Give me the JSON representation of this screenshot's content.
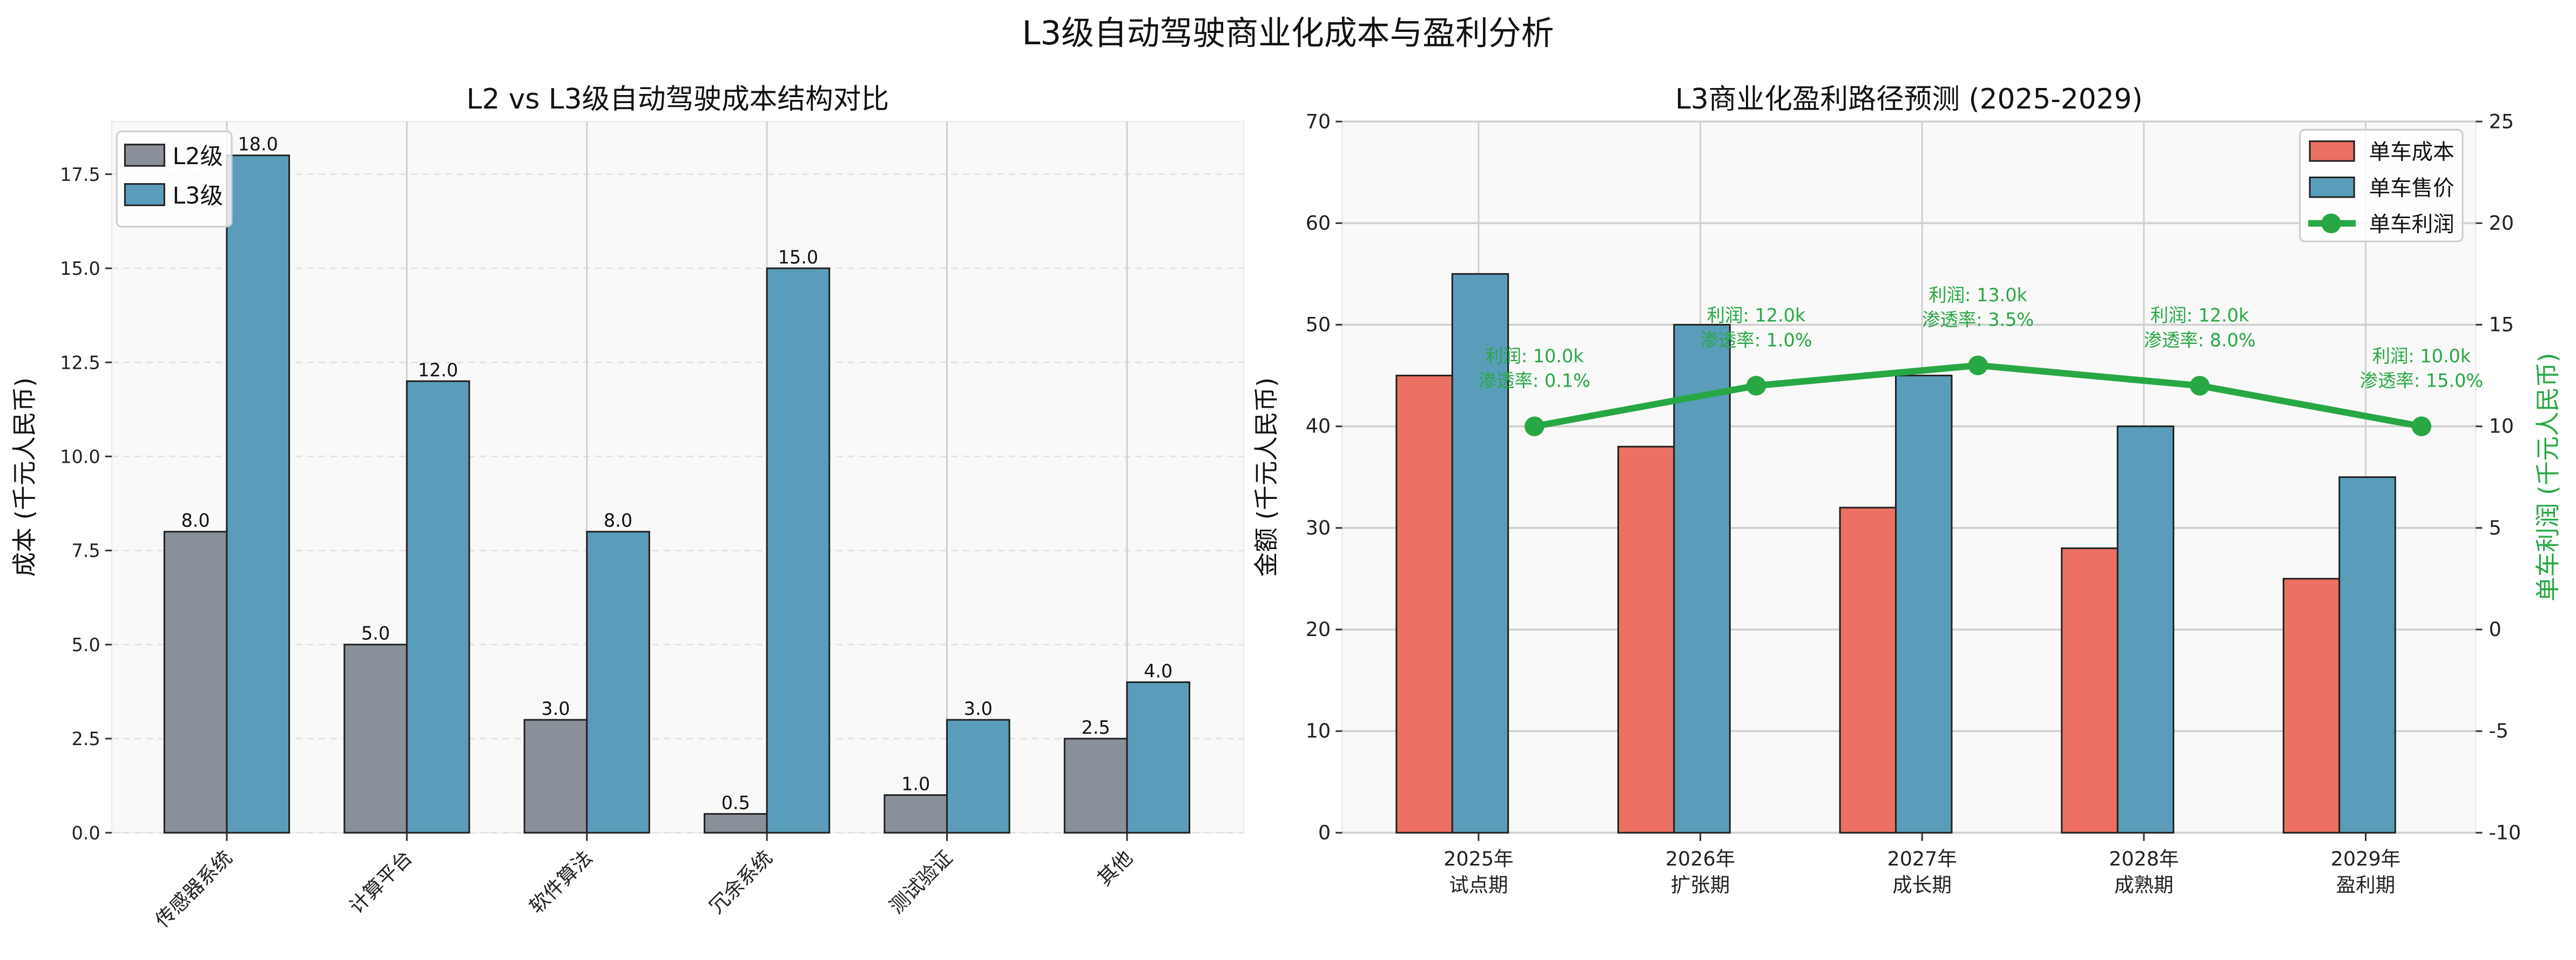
{
  "figure_title": "L3级自动驾驶商业化成本与盈利分析",
  "colors": {
    "l2": "#8a9099",
    "l3": "#5a9dba",
    "cost": "#ec7063",
    "price": "#5a9dba",
    "profit": "#28a745",
    "plot_bg": "#f9f9f9"
  },
  "chart_data": [
    {
      "type": "bar",
      "title": "L2 vs L3级自动驾驶成本结构对比",
      "xlabel": "",
      "ylabel": "成本 (千元人民币)",
      "categories": [
        "传感器系统",
        "计算平台",
        "软件算法",
        "冗余系统",
        "测试验证",
        "其他"
      ],
      "series": [
        {
          "name": "L2级",
          "values": [
            8.0,
            5.0,
            3.0,
            0.5,
            1.0,
            2.5
          ]
        },
        {
          "name": "L3级",
          "values": [
            18.0,
            12.0,
            8.0,
            15.0,
            3.0,
            4.0
          ]
        }
      ],
      "ylim": [
        0,
        18.9
      ],
      "yticks": [
        "0.0",
        "2.5",
        "5.0",
        "7.5",
        "10.0",
        "12.5",
        "15.0",
        "17.5"
      ],
      "grid": true,
      "legend": "top-left"
    },
    {
      "type": "bar+line",
      "title": "L3商业化盈利路径预测 (2025-2029)",
      "ylabel": "金额 (千元人民币)",
      "y2label": "单车利润 (千元人民币)",
      "categories": [
        "2025年\n试点期",
        "2026年\n扩张期",
        "2027年\n成长期",
        "2028年\n成熟期",
        "2029年\n盈利期"
      ],
      "category_lines": [
        [
          "2025年",
          "试点期"
        ],
        [
          "2026年",
          "扩张期"
        ],
        [
          "2027年",
          "成长期"
        ],
        [
          "2028年",
          "成熟期"
        ],
        [
          "2029年",
          "盈利期"
        ]
      ],
      "series": [
        {
          "name": "单车成本",
          "type": "bar",
          "axis": "left",
          "values": [
            45,
            38,
            32,
            28,
            25
          ]
        },
        {
          "name": "单车售价",
          "type": "bar",
          "axis": "left",
          "values": [
            55,
            50,
            45,
            40,
            35
          ]
        },
        {
          "name": "单车利润",
          "type": "line",
          "axis": "right",
          "values": [
            10,
            12,
            13,
            12,
            10
          ]
        }
      ],
      "annotations": [
        [
          "利润: 10.0k",
          "渗透率: 0.1%"
        ],
        [
          "利润: 12.0k",
          "渗透率: 1.0%"
        ],
        [
          "利润: 13.0k",
          "渗透率: 3.5%"
        ],
        [
          "利润: 12.0k",
          "渗透率: 8.0%"
        ],
        [
          "利润: 10.0k",
          "渗透率: 15.0%"
        ]
      ],
      "ylim": [
        0,
        70
      ],
      "y2lim": [
        -10,
        25
      ],
      "yticks": [
        "0",
        "10",
        "20",
        "30",
        "40",
        "50",
        "60",
        "70"
      ],
      "y2ticks": [
        "-10",
        "-5",
        "0",
        "5",
        "10",
        "15",
        "20",
        "25"
      ],
      "grid": true,
      "legend": "top-right"
    }
  ]
}
